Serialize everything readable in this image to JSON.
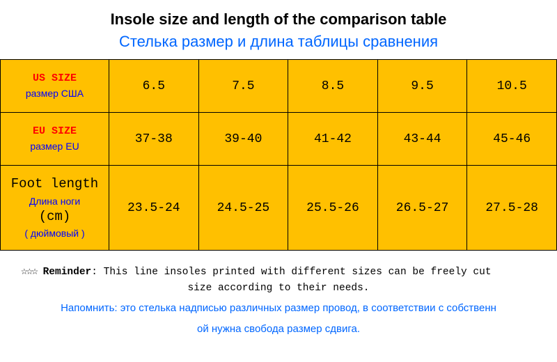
{
  "title": {
    "en": "Insole size and length of the comparison table",
    "ru": "Стелька размер и длина таблицы сравнения"
  },
  "table": {
    "background_color": "#ffc000",
    "border_color": "#000000",
    "rows": [
      {
        "label_en": "US SIZE",
        "label_ru": "размер США",
        "values": [
          "6.5",
          "7.5",
          "8.5",
          "9.5",
          "10.5"
        ]
      },
      {
        "label_en": "EU SIZE",
        "label_ru": "размер EU",
        "values": [
          "37-38",
          "39-40",
          "41-42",
          "43-44",
          "45-46"
        ]
      },
      {
        "label_en": "Foot length",
        "label_ru": "Длина ноги",
        "unit_cm": "(cm)",
        "unit_ru": "( дюймовый )",
        "values": [
          "23.5-24",
          "24.5-25",
          "25.5-26",
          "26.5-27",
          "27.5-28"
        ]
      }
    ]
  },
  "reminder": {
    "stars": "☆☆☆",
    "label": "Reminder",
    "text_en_line1": ": This line insoles printed with different sizes can be freely cut",
    "text_en_line2": "size according to their needs.",
    "text_ru_line1": "Напомнить: это стелька надписью различных размер провод, в соответствии с собственн",
    "text_ru_line2": "ой нужна свобода размер сдвига."
  },
  "colors": {
    "title_en": "#000000",
    "title_ru": "#0066ff",
    "label_en_red": "#ff0000",
    "label_ru_blue": "#0000ff",
    "cell_text": "#000000",
    "reminder_ru": "#0066ff"
  }
}
